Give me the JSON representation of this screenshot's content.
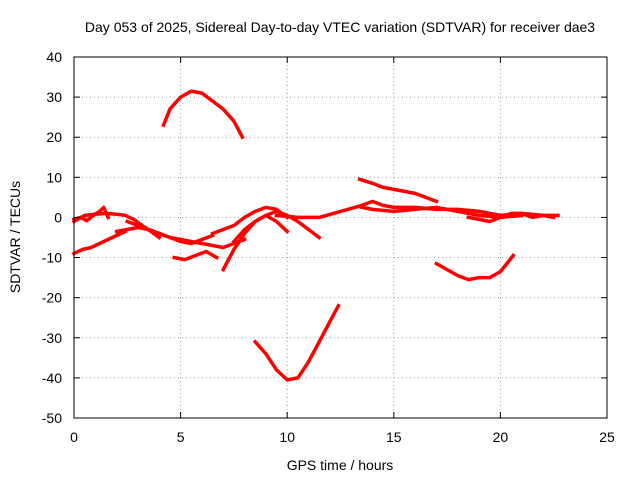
{
  "chart_data": {
    "type": "line",
    "title": "Day 053 of 2025, Sidereal Day-to-day VTEC variation (SDTVAR) for receiver dae3",
    "xlabel": "GPS time / hours",
    "ylabel": "SDTVAR / TECUs",
    "xlim": [
      0,
      25
    ],
    "ylim": [
      -50,
      40
    ],
    "xticks": [
      0,
      5,
      10,
      15,
      20,
      25
    ],
    "yticks": [
      -50,
      -40,
      -30,
      -20,
      -10,
      0,
      10,
      20,
      30,
      40
    ],
    "grid": true,
    "legend": "none",
    "color": "#ff0000",
    "series": [
      {
        "x": [
          0.0,
          0.3,
          0.6,
          0.9,
          1.2,
          1.4,
          1.6
        ],
        "y": [
          -0.5,
          0.0,
          -0.8,
          0.5,
          1.5,
          2.5,
          0.0
        ]
      },
      {
        "x": [
          0.0,
          0.5,
          1.0,
          1.5,
          2.0,
          2.4,
          2.8,
          3.2,
          3.6,
          4.0
        ],
        "y": [
          -1.0,
          0.5,
          0.8,
          1.0,
          0.8,
          0.5,
          -0.5,
          -2.0,
          -3.5,
          -5.0
        ]
      },
      {
        "x": [
          0.0,
          0.4,
          0.8,
          1.2,
          1.6,
          2.0,
          2.4
        ],
        "y": [
          -9.0,
          -8.0,
          -7.5,
          -6.5,
          -5.5,
          -4.5,
          -3.5
        ]
      },
      {
        "x": [
          2.0,
          2.5,
          3.0,
          3.5,
          4.0,
          4.5,
          5.0,
          5.5,
          6.0,
          6.5
        ],
        "y": [
          -3.5,
          -3.0,
          -2.5,
          -3.0,
          -4.0,
          -5.0,
          -6.0,
          -6.5,
          -5.5,
          -4.5
        ]
      },
      {
        "x": [
          2.5,
          3.0,
          3.5,
          4.0,
          4.5,
          5.0,
          5.5,
          6.0,
          6.5,
          7.0,
          7.5,
          8.0
        ],
        "y": [
          -1.0,
          -2.0,
          -3.0,
          -4.0,
          -5.0,
          -5.5,
          -6.0,
          -6.5,
          -7.0,
          -7.5,
          -6.5,
          -5.5
        ]
      },
      {
        "x": [
          4.7,
          5.2,
          5.7,
          6.2,
          6.7
        ],
        "y": [
          -10.0,
          -10.5,
          -9.5,
          -8.5,
          -10.0
        ]
      },
      {
        "x": [
          4.2,
          4.5,
          5.0,
          5.5,
          6.0,
          6.5,
          7.0,
          7.5,
          7.9
        ],
        "y": [
          23.0,
          27.0,
          30.0,
          31.5,
          31.0,
          29.0,
          27.0,
          24.0,
          20.0
        ]
      },
      {
        "x": [
          7.0,
          7.5,
          8.0,
          8.5,
          9.0,
          9.5,
          10.0,
          10.5,
          11.0,
          11.5
        ],
        "y": [
          -13.0,
          -8.0,
          -4.0,
          -1.0,
          0.5,
          1.5,
          0.5,
          -1.0,
          -3.0,
          -5.0
        ]
      },
      {
        "x": [
          6.5,
          7.0,
          7.5,
          8.0,
          8.5,
          9.0,
          9.5,
          10.0
        ],
        "y": [
          -4.0,
          -3.0,
          -2.0,
          0.0,
          1.5,
          2.5,
          2.0,
          0.0
        ]
      },
      {
        "x": [
          7.5,
          8.0,
          8.5,
          9.0,
          9.5,
          10.0
        ],
        "y": [
          -6.0,
          -3.0,
          -1.0,
          0.5,
          -1.0,
          -3.5
        ]
      },
      {
        "x": [
          8.5,
          9.0,
          9.5,
          10.0,
          10.5,
          11.0,
          11.5,
          12.0,
          12.4
        ],
        "y": [
          -31.0,
          -34.0,
          -38.0,
          -40.5,
          -40.0,
          -36.0,
          -31.0,
          -26.0,
          -22.0
        ]
      },
      {
        "x": [
          9.5,
          10.5,
          11.5,
          12.5,
          13.5,
          14.0,
          14.5,
          15.0,
          16.0,
          17.0,
          18.0,
          19.0,
          20.0,
          21.0,
          22.0,
          22.7
        ],
        "y": [
          0.5,
          0.0,
          0.0,
          1.5,
          3.0,
          4.0,
          3.0,
          2.5,
          2.5,
          2.0,
          2.0,
          1.5,
          0.5,
          1.0,
          0.5,
          0.5
        ]
      },
      {
        "x": [
          13.5,
          14.0,
          15.0,
          16.0,
          17.0,
          17.5,
          18.0,
          19.0,
          20.0,
          21.0
        ],
        "y": [
          2.5,
          2.0,
          1.5,
          2.0,
          2.5,
          2.0,
          1.5,
          0.5,
          0.0,
          0.5
        ]
      },
      {
        "x": [
          13.4,
          14.0,
          14.5,
          15.0,
          15.5,
          16.0,
          16.5,
          17.0
        ],
        "y": [
          9.5,
          8.5,
          7.5,
          7.0,
          6.5,
          6.0,
          5.0,
          4.0
        ]
      },
      {
        "x": [
          17.0,
          17.5,
          18.0,
          18.5,
          19.0,
          19.5,
          20.0,
          20.3,
          20.6
        ],
        "y": [
          -11.5,
          -13.0,
          -14.5,
          -15.5,
          -15.0,
          -15.0,
          -13.5,
          -11.5,
          -9.5
        ]
      },
      {
        "x": [
          18.5,
          19.0,
          19.5,
          20.0,
          20.5,
          21.0,
          21.5,
          22.0,
          22.5
        ],
        "y": [
          0.0,
          -0.5,
          -1.0,
          0.0,
          1.0,
          1.0,
          0.0,
          0.5,
          0.0
        ]
      }
    ]
  }
}
